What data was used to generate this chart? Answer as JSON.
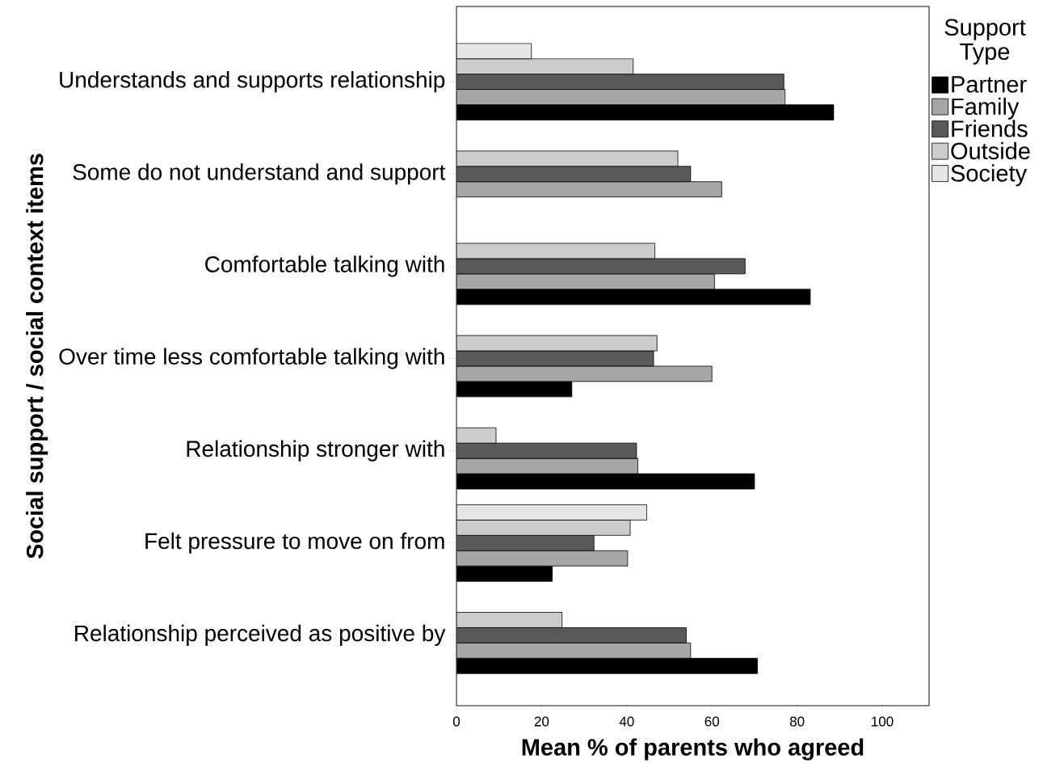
{
  "chart_data": {
    "type": "bar",
    "orientation": "horizontal",
    "xlabel": "Mean % of parents who agreed",
    "ylabel": "Social support / social context items",
    "legend_title": "Support Type",
    "legend": "top right",
    "categories": [
      "Understands and supports relationship",
      "Some do not understand and support",
      "Comfortable talking with",
      "Over time less comfortable talking with",
      "Relationship stronger with",
      "Felt pressure to move on from",
      "Relationship perceived as positive by"
    ],
    "series": [
      {
        "name": "Partner",
        "color": "#000000",
        "values": [
          88.6,
          null,
          83.1,
          27.1,
          70.0,
          22.5,
          70.7
        ]
      },
      {
        "name": "Family",
        "color": "#a6a6a6",
        "values": [
          77.2,
          62.3,
          60.6,
          60.0,
          42.6,
          40.2,
          55.0
        ]
      },
      {
        "name": "Friends",
        "color": "#595959",
        "values": [
          76.9,
          55.0,
          67.8,
          46.3,
          42.3,
          32.3,
          54.0
        ]
      },
      {
        "name": "Outside",
        "color": "#cccccc",
        "values": [
          41.5,
          52.0,
          46.6,
          47.1,
          9.3,
          40.8,
          24.8
        ]
      },
      {
        "name": "Society",
        "color": "#e6e6e6",
        "values": [
          17.6,
          null,
          null,
          null,
          null,
          44.7,
          null
        ]
      }
    ],
    "xlim": [
      0,
      111
    ],
    "xticks": [
      0,
      20,
      40,
      60,
      80,
      100
    ],
    "grid": false
  }
}
